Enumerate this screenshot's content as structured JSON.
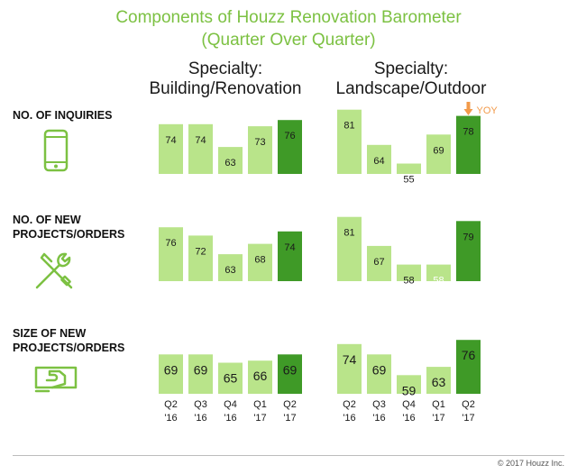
{
  "title_line1": "Components of Houzz Renovation Barometer",
  "title_line2": "(Quarter Over Quarter)",
  "columns": [
    {
      "line1": "Specialty:",
      "line2": "Building/Renovation"
    },
    {
      "line1": "Specialty:",
      "line2": "Landscape/Outdoor"
    }
  ],
  "rows": [
    {
      "label1": "NO. OF INQUIRIES",
      "label2": "",
      "icon": "smartphone-icon"
    },
    {
      "label1": "NO. OF NEW",
      "label2": "PROJECTS/ORDERS",
      "icon": "tools-icon"
    },
    {
      "label1": "SIZE OF NEW",
      "label2": "PROJECTS/ORDERS",
      "icon": "money-hand-icon"
    }
  ],
  "yoy_label": "YOY",
  "footer": "© 2017 Houzz Inc.",
  "colors": {
    "light_bar": "#b9e48a",
    "dark_bar": "#3f9a27",
    "title": "#7cc142",
    "yoy": "#f29a4a"
  },
  "chart_data": {
    "type": "bar",
    "categories": [
      [
        "Q2",
        "'16"
      ],
      [
        "Q3",
        "'16"
      ],
      [
        "Q4",
        "'16"
      ],
      [
        "Q1",
        "'17"
      ],
      [
        "Q2",
        "'17"
      ]
    ],
    "panels": [
      {
        "row": "NO. OF INQUIRIES",
        "column": "Building/Renovation",
        "values": [
          74,
          74,
          63,
          73,
          76
        ]
      },
      {
        "row": "NO. OF INQUIRIES",
        "column": "Landscape/Outdoor",
        "values": [
          81,
          64,
          55,
          69,
          78
        ],
        "annotation": "YOY down arrow on Q2 '17"
      },
      {
        "row": "NO. OF NEW PROJECTS/ORDERS",
        "column": "Building/Renovation",
        "values": [
          76,
          72,
          63,
          68,
          74
        ]
      },
      {
        "row": "NO. OF NEW PROJECTS/ORDERS",
        "column": "Landscape/Outdoor",
        "values": [
          81,
          67,
          58,
          58,
          79
        ]
      },
      {
        "row": "SIZE OF NEW PROJECTS/ORDERS",
        "column": "Building/Renovation",
        "values": [
          69,
          69,
          65,
          66,
          69
        ]
      },
      {
        "row": "SIZE OF NEW PROJECTS/ORDERS",
        "column": "Landscape/Outdoor",
        "values": [
          74,
          69,
          59,
          63,
          76
        ]
      }
    ],
    "highlight_category_index": 4,
    "ylim": [
      0,
      100
    ],
    "grid": false,
    "legend": "none"
  }
}
